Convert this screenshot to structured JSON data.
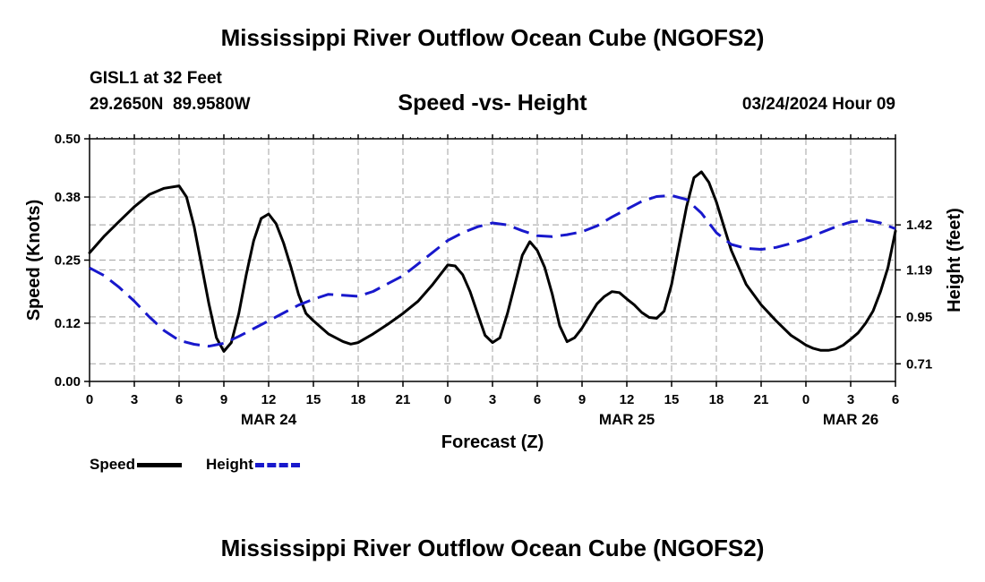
{
  "header": {
    "title": "Mississippi River Outflow Ocean Cube (NGOFS2)",
    "station": "GISL1 at 32 Feet",
    "coords": "29.2650N  89.9580W",
    "subtitle": "Speed -vs- Height",
    "datetime": "03/24/2024 Hour 09"
  },
  "footer": {
    "title": "Mississippi River Outflow Ocean Cube (NGOFS2)"
  },
  "legend": {
    "speed_label": "Speed",
    "height_label": "Height"
  },
  "colors": {
    "speed": "#000000",
    "height": "#1818cc",
    "grid": "#b0b0b0"
  },
  "chart_data": {
    "type": "line",
    "title": "Speed -vs- Height",
    "xlabel": "Forecast (Z)",
    "ylabel_left": "Speed (Knots)",
    "ylabel_right": "Height (feet)",
    "x_unit": "hours",
    "xlim": [
      0,
      54
    ],
    "x_ticks": [
      0,
      3,
      6,
      9,
      12,
      15,
      18,
      21,
      24,
      27,
      30,
      33,
      36,
      39,
      42,
      45,
      48,
      51,
      54
    ],
    "x_tick_labels": [
      "0",
      "3",
      "6",
      "9",
      "12",
      "15",
      "18",
      "21",
      "0",
      "3",
      "6",
      "9",
      "12",
      "15",
      "18",
      "21",
      "0",
      "3",
      "6"
    ],
    "date_labels": [
      {
        "x": 12,
        "label": "MAR 24"
      },
      {
        "x": 36,
        "label": "MAR 25"
      },
      {
        "x": 51,
        "label": "MAR 26"
      }
    ],
    "left_axis": {
      "ylim": [
        0,
        0.5
      ],
      "ticks": [
        0.0,
        0.12,
        0.25,
        0.38,
        0.5
      ],
      "tick_labels": [
        "0.00",
        "0.12",
        "0.25",
        "0.38",
        "0.50"
      ]
    },
    "right_axis": {
      "ylim": [
        0.62,
        1.86
      ],
      "ticks": [
        0.71,
        0.95,
        1.19,
        1.42
      ],
      "tick_labels": [
        "0.71",
        "0.95",
        "1.19",
        "1.42"
      ]
    },
    "grid": true,
    "series": [
      {
        "name": "Speed",
        "axis": "left",
        "style": "solid",
        "x": [
          0,
          1,
          2,
          3,
          4,
          5,
          6,
          6.5,
          7,
          7.5,
          8,
          8.5,
          9,
          9.5,
          10,
          10.5,
          11,
          11.5,
          12,
          12.5,
          13,
          13.5,
          14,
          14.5,
          15,
          16,
          17,
          17.5,
          18,
          19,
          20,
          21,
          22,
          23,
          24,
          24.5,
          25,
          25.5,
          26,
          26.5,
          27,
          27.5,
          28,
          28.5,
          29,
          29.5,
          30,
          30.5,
          31,
          31.5,
          32,
          32.5,
          33,
          33.5,
          34,
          34.5,
          35,
          35.5,
          36,
          36.5,
          37,
          37.5,
          38,
          38.5,
          39,
          39.5,
          40,
          40.5,
          41,
          41.5,
          42,
          42.5,
          43,
          44,
          45,
          46,
          47,
          47.5,
          48,
          48.5,
          49,
          49.5,
          50,
          50.5,
          51,
          51.5,
          52,
          52.5,
          53,
          53.5,
          54
        ],
        "values": [
          0.265,
          0.3,
          0.33,
          0.36,
          0.385,
          0.398,
          0.403,
          0.38,
          0.32,
          0.24,
          0.16,
          0.09,
          0.062,
          0.08,
          0.14,
          0.22,
          0.29,
          0.336,
          0.345,
          0.325,
          0.285,
          0.235,
          0.18,
          0.14,
          0.125,
          0.098,
          0.082,
          0.077,
          0.08,
          0.098,
          0.118,
          0.14,
          0.165,
          0.2,
          0.24,
          0.238,
          0.22,
          0.185,
          0.14,
          0.095,
          0.08,
          0.09,
          0.14,
          0.2,
          0.26,
          0.288,
          0.27,
          0.235,
          0.18,
          0.115,
          0.082,
          0.09,
          0.11,
          0.135,
          0.16,
          0.175,
          0.185,
          0.183,
          0.17,
          0.158,
          0.142,
          0.132,
          0.13,
          0.145,
          0.2,
          0.28,
          0.36,
          0.42,
          0.432,
          0.41,
          0.37,
          0.32,
          0.27,
          0.2,
          0.158,
          0.125,
          0.095,
          0.085,
          0.075,
          0.068,
          0.064,
          0.064,
          0.067,
          0.075,
          0.087,
          0.1,
          0.12,
          0.145,
          0.185,
          0.235,
          0.31
        ]
      },
      {
        "name": "Height",
        "axis": "right",
        "style": "dashed",
        "x": [
          0,
          1,
          2,
          3,
          4,
          5,
          6,
          7,
          8,
          9,
          10,
          11,
          12,
          13,
          14,
          15,
          16,
          17,
          18,
          19,
          20,
          21,
          22,
          23,
          24,
          25,
          26,
          27,
          28,
          29,
          30,
          31,
          32,
          33,
          34,
          35,
          36,
          37,
          38,
          39,
          40,
          41,
          42,
          43,
          44,
          45,
          46,
          47,
          48,
          49,
          50,
          51,
          52,
          53,
          54
        ],
        "values": [
          1.2,
          1.16,
          1.1,
          1.03,
          0.95,
          0.88,
          0.83,
          0.81,
          0.8,
          0.815,
          0.85,
          0.89,
          0.93,
          0.97,
          1.01,
          1.04,
          1.065,
          1.06,
          1.055,
          1.08,
          1.12,
          1.16,
          1.22,
          1.28,
          1.34,
          1.38,
          1.41,
          1.43,
          1.42,
          1.39,
          1.365,
          1.36,
          1.37,
          1.385,
          1.415,
          1.46,
          1.5,
          1.54,
          1.565,
          1.57,
          1.55,
          1.48,
          1.38,
          1.32,
          1.3,
          1.295,
          1.305,
          1.325,
          1.35,
          1.38,
          1.41,
          1.435,
          1.445,
          1.43,
          1.4
        ]
      }
    ]
  }
}
